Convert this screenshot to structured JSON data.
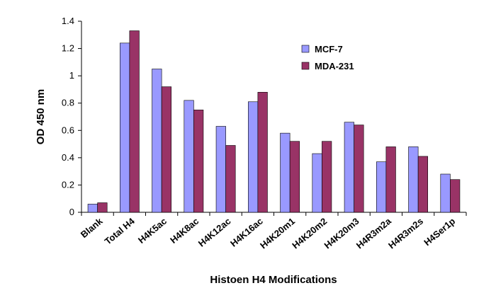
{
  "chart_data": {
    "type": "bar",
    "categories": [
      "Blank",
      "Total H4",
      "H4K5ac",
      "H4K8ac",
      "H4K12ac",
      "H4K16ac",
      "H4K20m1",
      "H4K20m2",
      "H4K20m3",
      "H4R3m2a",
      "H4R3m2s",
      "H4Ser1p"
    ],
    "series": [
      {
        "name": "MCF-7",
        "color": "#9999ff",
        "values": [
          0.06,
          1.24,
          1.05,
          0.82,
          0.63,
          0.81,
          0.58,
          0.43,
          0.66,
          0.37,
          0.48,
          0.28
        ]
      },
      {
        "name": "MDA-231",
        "color": "#993366",
        "values": [
          0.07,
          1.33,
          0.92,
          0.75,
          0.49,
          0.88,
          0.52,
          0.52,
          0.64,
          0.48,
          0.41,
          0.24
        ]
      }
    ],
    "ylim": [
      0,
      1.4
    ],
    "yticks": [
      0,
      0.2,
      0.4,
      0.6,
      0.8,
      1,
      1.2,
      1.4
    ],
    "y_label": "OD 450 nm",
    "x_label": "Histoen H4 Modifications",
    "legend": "upper right"
  }
}
